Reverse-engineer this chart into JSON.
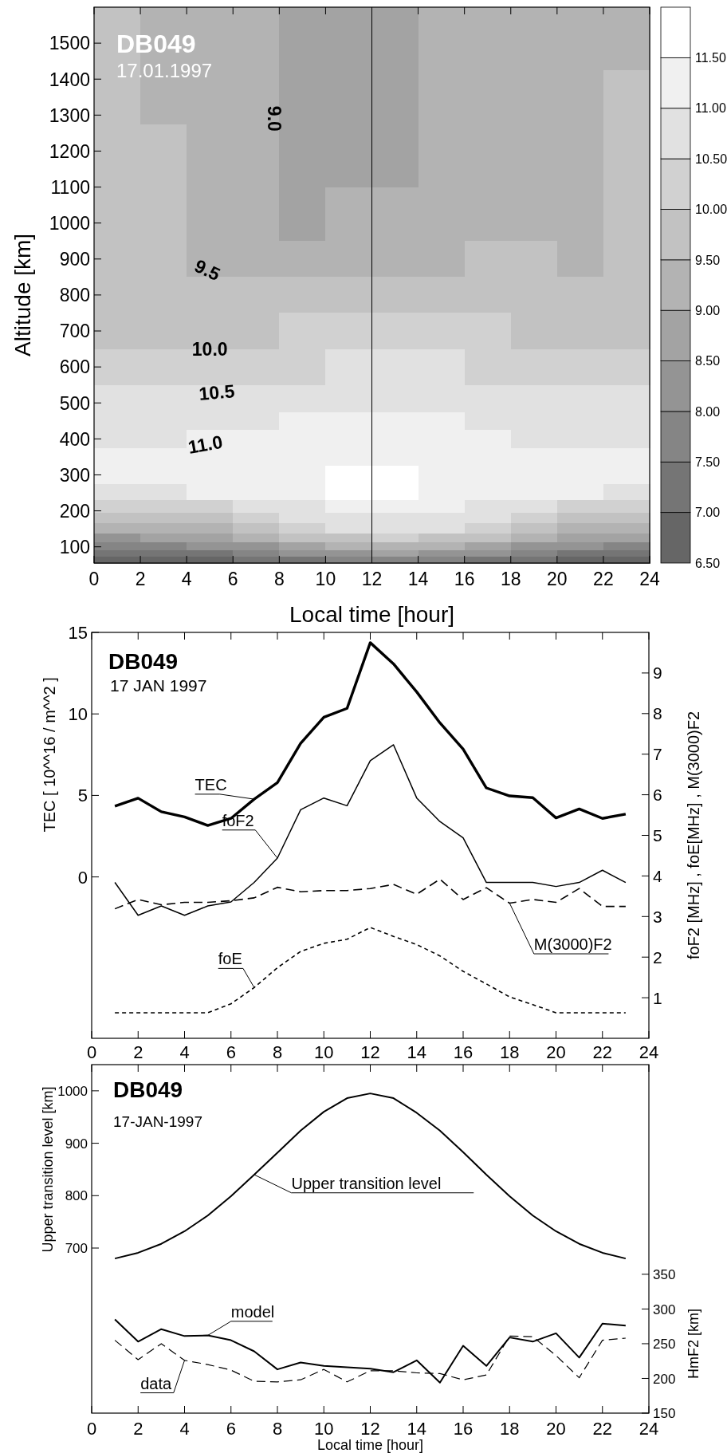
{
  "chart_data": [
    {
      "type": "heatmap",
      "title": "DB049",
      "subtitle": "17.01.1997",
      "xlabel": "Local time [hour]",
      "ylabel": "Altitude [km]",
      "x": [
        1,
        3,
        5,
        7,
        9,
        11,
        13,
        15,
        17,
        19,
        21,
        23
      ],
      "y": [
        1500,
        1350,
        1200,
        1000,
        900,
        800,
        700,
        600,
        500,
        450,
        400,
        350,
        300,
        250,
        210,
        180,
        150,
        125,
        100,
        80,
        65
      ],
      "cells": [
        [
          9.58,
          9.48,
          9.3,
          9.05,
          8.85,
          8.83,
          8.92,
          9.14,
          9.33,
          9.33,
          9.3,
          9.38
        ],
        [
          9.58,
          9.48,
          9.3,
          9.05,
          8.85,
          8.85,
          8.94,
          9.14,
          9.33,
          9.35,
          9.38,
          9.5
        ],
        [
          9.6,
          9.5,
          9.33,
          9.1,
          8.9,
          8.9,
          8.97,
          9.2,
          9.33,
          9.35,
          9.38,
          9.5
        ],
        [
          9.68,
          9.53,
          9.35,
          9.23,
          8.98,
          9.05,
          9.25,
          9.33,
          9.38,
          9.4,
          9.4,
          9.5
        ],
        [
          9.7,
          9.6,
          9.45,
          9.38,
          9.35,
          9.38,
          9.43,
          9.48,
          9.53,
          9.5,
          9.45,
          9.53
        ],
        [
          9.8,
          9.7,
          9.58,
          9.55,
          9.58,
          9.6,
          9.65,
          9.73,
          9.73,
          9.65,
          9.58,
          9.63
        ],
        [
          9.99,
          9.95,
          9.93,
          9.98,
          10.05,
          10.18,
          10.28,
          10.23,
          10.05,
          9.9,
          9.85,
          9.85
        ],
        [
          10.3,
          10.3,
          10.33,
          10.38,
          10.45,
          10.53,
          10.55,
          10.5,
          10.38,
          10.25,
          10.2,
          10.25
        ],
        [
          10.6,
          10.6,
          10.6,
          10.65,
          10.75,
          10.85,
          10.88,
          10.78,
          10.65,
          10.58,
          10.55,
          10.54
        ],
        [
          10.7,
          10.75,
          10.83,
          10.9,
          11.0,
          11.08,
          11.08,
          11.0,
          10.85,
          10.73,
          10.7,
          10.7
        ],
        [
          10.9,
          10.93,
          11.0,
          11.1,
          11.2,
          11.28,
          11.3,
          11.2,
          11.03,
          10.93,
          10.9,
          10.93
        ],
        [
          11.15,
          11.1,
          11.15,
          11.25,
          11.35,
          11.45,
          11.45,
          11.35,
          11.25,
          11.18,
          11.15,
          11.18
        ],
        [
          11.08,
          11.13,
          11.25,
          11.35,
          11.45,
          11.65,
          11.65,
          11.45,
          11.35,
          11.25,
          11.2,
          11.15
        ],
        [
          10.75,
          10.93,
          11.08,
          11.15,
          11.38,
          11.58,
          11.58,
          11.38,
          11.15,
          11.08,
          11.05,
          10.98
        ],
        [
          10.2,
          10.25,
          10.38,
          10.63,
          10.95,
          11.15,
          11.2,
          11.15,
          10.95,
          10.63,
          10.38,
          10.25
        ],
        [
          9.7,
          9.75,
          9.9,
          10.2,
          10.6,
          10.88,
          10.95,
          10.88,
          10.6,
          10.2,
          9.9,
          9.75
        ],
        [
          9.1,
          9.2,
          9.4,
          9.75,
          10.2,
          10.5,
          10.6,
          10.5,
          10.2,
          9.75,
          9.4,
          9.2
        ],
        [
          8.4,
          8.5,
          8.75,
          9.15,
          9.6,
          9.95,
          10.1,
          9.95,
          9.6,
          9.15,
          8.75,
          8.5
        ],
        [
          7.7,
          7.8,
          8.05,
          8.45,
          8.9,
          9.2,
          9.3,
          9.2,
          8.9,
          8.45,
          8.05,
          7.8
        ],
        [
          7.1,
          7.15,
          7.35,
          7.7,
          8.1,
          8.4,
          8.5,
          8.4,
          8.1,
          7.7,
          7.35,
          7.15
        ],
        [
          6.6,
          6.65,
          6.85,
          7.15,
          7.45,
          7.7,
          7.8,
          7.7,
          7.45,
          7.15,
          6.85,
          6.65
        ]
      ],
      "clim": [
        6.5,
        12
      ],
      "cticks": [
        {
          "value": 6.5,
          "label": "6.50"
        },
        {
          "value": 7,
          "label": "7.00"
        },
        {
          "value": 7.5,
          "label": "7.50"
        },
        {
          "value": 8,
          "label": "8.00"
        },
        {
          "value": 8.5,
          "label": "8.50"
        },
        {
          "value": 9,
          "label": "9.00"
        },
        {
          "value": 9.5,
          "label": "9.50"
        },
        {
          "value": 10,
          "label": "10.00"
        },
        {
          "value": 10.5,
          "label": "10.50"
        },
        {
          "value": 11,
          "label": "11.00"
        },
        {
          "value": 11.5,
          "label": "11.50"
        }
      ],
      "xlim": [
        0,
        24
      ],
      "xticks": [
        0,
        2,
        4,
        6,
        8,
        10,
        12,
        14,
        16,
        18,
        20,
        22,
        24
      ],
      "ylim": [
        55,
        1600
      ],
      "yticks": [
        100,
        200,
        300,
        400,
        500,
        600,
        700,
        800,
        900,
        1000,
        1100,
        1200,
        1300,
        1400,
        1500
      ],
      "ref_lines": [
        {
          "axis": "x",
          "value": 12
        }
      ],
      "annotations": [
        "9.0",
        "9.5",
        "10.0",
        "10.5",
        "11.0"
      ]
    },
    {
      "type": "line",
      "title": "DB049",
      "subtitle": "17 JAN 1997",
      "ylabel": "TEC [ 10^^16 / m^^2 ]",
      "y2label": "foF2 [MHz] , foE[MHz] , M(3000)F2",
      "x": [
        1,
        2,
        3,
        4,
        5,
        6,
        7,
        8,
        9,
        10,
        11,
        12,
        13,
        14,
        15,
        16,
        17,
        18,
        19,
        20,
        21,
        22,
        23
      ],
      "xlim": [
        0,
        24
      ],
      "xticks": [
        0,
        2,
        4,
        6,
        8,
        10,
        12,
        14,
        16,
        18,
        20,
        22,
        24
      ],
      "ylim": [
        -9.9,
        15
      ],
      "yticks": [
        0,
        5,
        10,
        15
      ],
      "y2lim": [
        0,
        10
      ],
      "y2ticks": [
        1,
        2,
        3,
        4,
        5,
        6,
        7,
        8,
        9
      ],
      "series": [
        {
          "name": "TEC",
          "color": "#000000",
          "line_style": "solid",
          "values": [
            4.34,
            4.83,
            4.0,
            3.68,
            3.16,
            3.59,
            4.77,
            5.78,
            8.19,
            9.8,
            10.34,
            14.37,
            13.07,
            11.35,
            9.45,
            7.84,
            5.46,
            4.97,
            4.86,
            3.62,
            4.17,
            3.59,
            3.85
          ]
        },
        {
          "name": "foF2",
          "color": "#000000",
          "line_style": "solid",
          "axis": "y2",
          "values": [
            3.84,
            3.03,
            3.26,
            3.03,
            3.26,
            3.36,
            3.84,
            4.44,
            5.63,
            5.92,
            5.73,
            6.84,
            7.23,
            5.92,
            5.34,
            4.94,
            3.84,
            3.84,
            3.84,
            3.74,
            3.84,
            4.14,
            3.84
          ]
        },
        {
          "name": "M(3000)F2",
          "color": "#000000",
          "line_style": "dashed",
          "axis": "y2",
          "values": [
            3.19,
            3.42,
            3.29,
            3.35,
            3.35,
            3.39,
            3.46,
            3.72,
            3.61,
            3.64,
            3.64,
            3.69,
            3.79,
            3.55,
            3.92,
            3.42,
            3.71,
            3.33,
            3.42,
            3.35,
            3.69,
            3.25,
            3.25
          ]
        },
        {
          "name": "foE",
          "color": "#000000",
          "line_style": "dotted",
          "axis": "y2",
          "values": [
            0.63,
            0.63,
            0.63,
            0.63,
            0.63,
            0.85,
            1.25,
            1.74,
            2.14,
            2.34,
            2.44,
            2.73,
            2.51,
            2.31,
            2.03,
            1.65,
            1.34,
            1.02,
            0.83,
            0.63,
            0.63,
            0.63,
            0.63
          ]
        }
      ]
    },
    {
      "type": "line",
      "title": "DB049",
      "subtitle": "17-JAN-1997",
      "xlabel": "Local time [hour]",
      "ylabel": "Upper transition level [km]",
      "y2label": "HmF2 [km]",
      "x": [
        1,
        2,
        3,
        4,
        5,
        6,
        7,
        8,
        9,
        10,
        11,
        12,
        13,
        14,
        15,
        16,
        17,
        18,
        19,
        20,
        21,
        22,
        23
      ],
      "xlim": [
        0,
        24
      ],
      "xticks": [
        0,
        2,
        4,
        6,
        8,
        10,
        12,
        14,
        16,
        18,
        20,
        22,
        24
      ],
      "ylim": [
        385,
        1050
      ],
      "yticks": [
        700,
        800,
        900,
        1000
      ],
      "y2lim": [
        150,
        652
      ],
      "y2ticks": [
        150,
        200,
        250,
        300,
        350
      ],
      "series": [
        {
          "name": "Upper transition level",
          "color": "#000000",
          "line_style": "solid",
          "values": [
            680,
            691,
            708,
            732,
            762,
            799,
            840,
            882,
            924,
            960,
            986,
            995,
            986,
            958,
            924,
            883,
            840,
            799,
            762,
            732,
            708,
            691,
            680
          ]
        },
        {
          "name": "model",
          "color": "#000000",
          "line_style": "solid",
          "axis": "y2",
          "values": [
            285,
            253,
            271,
            261,
            262,
            255,
            239,
            213,
            223,
            218,
            216,
            214,
            209,
            226,
            194,
            247,
            218,
            259,
            253,
            265,
            230,
            279,
            276
          ]
        },
        {
          "name": "data",
          "color": "#000000",
          "line_style": "dashed",
          "axis": "y2",
          "values": [
            255,
            227,
            250,
            226,
            220,
            212,
            196,
            195,
            198,
            213,
            195,
            211,
            211,
            208,
            207,
            198,
            205,
            261,
            260,
            233,
            201,
            255,
            258
          ]
        }
      ]
    }
  ]
}
